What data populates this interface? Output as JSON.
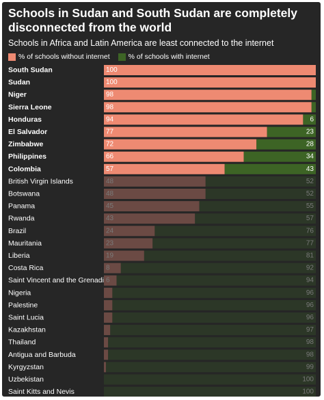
{
  "title": "Schools in Sudan and South Sudan are completely disconnected from the world",
  "subtitle": "Schools in Africa and Latin America are least connected to the internet",
  "colors": {
    "without": "#ee8a72",
    "with": "#3d6425",
    "without_dim": "#6b4a44",
    "with_dim": "#2c3727",
    "label_dim": "#7a7a7a",
    "label_bright": "#ffffff",
    "background": "#262626"
  },
  "chart_data": {
    "type": "bar",
    "orientation": "horizontal",
    "stacked": true,
    "title": "Schools in Sudan and South Sudan are completely disconnected from the world",
    "subtitle": "Schools in Africa and Latin America are least connected to the internet",
    "xlim": [
      0,
      100
    ],
    "grid": false,
    "legend_placement": "top-left",
    "highlighted_count": 9,
    "categories": [
      "South Sudan",
      "Sudan",
      "Niger",
      "Sierra Leone",
      "Honduras",
      "El Salvador",
      "Zimbabwe",
      "Philippines",
      "Colombia",
      "British Virgin Islands",
      "Botswana",
      "Panama",
      "Rwanda",
      "Brazil",
      "Mauritania",
      "Liberia",
      "Costa Rica",
      "Saint Vincent and the Grenadines",
      "Nigeria",
      "Palestine",
      "Saint Lucia",
      "Kazakhstan",
      "Thailand",
      "Antigua and Barbuda",
      "Kyrgyzstan",
      "Uzbekistan",
      "Saint Kitts and Nevis"
    ],
    "series": [
      {
        "name": "% of schools without internet",
        "values": [
          100,
          100,
          98,
          98,
          94,
          77,
          72,
          66,
          57,
          48,
          48,
          45,
          43,
          24,
          23,
          19,
          8,
          6,
          4,
          4,
          4,
          3,
          2,
          2,
          1,
          0,
          0
        ],
        "labels": [
          "100",
          "100",
          "98",
          "98",
          "94",
          "77",
          "72",
          "66",
          "57",
          "48",
          "48",
          "45",
          "43",
          "24",
          "23",
          "19",
          "8",
          "6",
          "",
          "",
          "",
          "",
          "",
          "",
          "",
          "",
          ""
        ]
      },
      {
        "name": "% of schools with internet",
        "values": [
          0,
          0,
          2,
          2,
          6,
          23,
          28,
          34,
          43,
          52,
          52,
          55,
          57,
          76,
          77,
          81,
          92,
          94,
          96,
          96,
          96,
          97,
          98,
          98,
          99,
          100,
          100
        ],
        "labels": [
          "",
          "",
          "",
          "",
          "6",
          "23",
          "28",
          "34",
          "43",
          "52",
          "52",
          "55",
          "57",
          "76",
          "77",
          "81",
          "92",
          "94",
          "96",
          "96",
          "96",
          "97",
          "98",
          "98",
          "99",
          "100",
          "100"
        ]
      }
    ]
  }
}
